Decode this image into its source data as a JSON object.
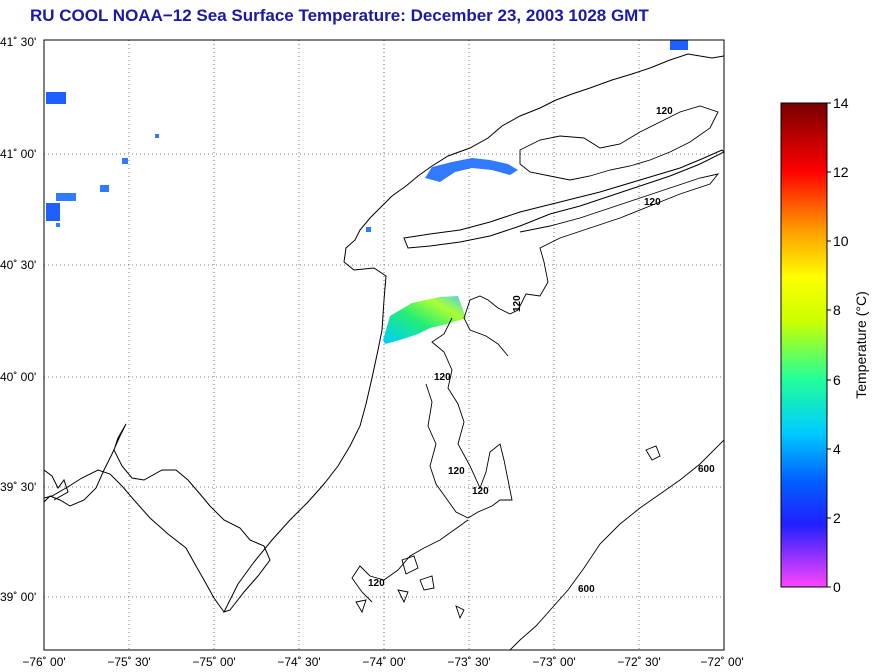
{
  "title": "RU COOL  NOAA−12  Sea Surface Temperature:  December 23, 2003 1028 GMT",
  "map": {
    "lat_ticks": [
      "41˚ 30'",
      "41˚ 00'",
      "40˚ 30'",
      "40˚ 00'",
      "39˚ 30'",
      "39˚ 00'"
    ],
    "lon_ticks": [
      "−76˚ 00'",
      "−75˚ 30'",
      "−75˚ 00'",
      "−74˚ 30'",
      "−74˚ 00'",
      "−73˚ 30'",
      "−73˚ 00'",
      "−72˚ 30'",
      "−72˚ 00'"
    ],
    "contour_labels": [
      "120",
      "120",
      "120",
      "120",
      "120",
      "120",
      "120",
      "600",
      "600"
    ],
    "lat_range": [
      38.75,
      41.5
    ],
    "lon_range": [
      -76.0,
      -72.0
    ],
    "grid": "dotted"
  },
  "colorbar": {
    "title": "Temperature (°C)",
    "ticks": [
      "14",
      "12",
      "10",
      "8",
      "6",
      "4",
      "2",
      "0"
    ],
    "min": 0,
    "max": 14,
    "colors": [
      "#ff44ff",
      "#2020ff",
      "#00ccff",
      "#22ff99",
      "#ffff00",
      "#ff9900",
      "#ff0000",
      "#770000"
    ]
  }
}
